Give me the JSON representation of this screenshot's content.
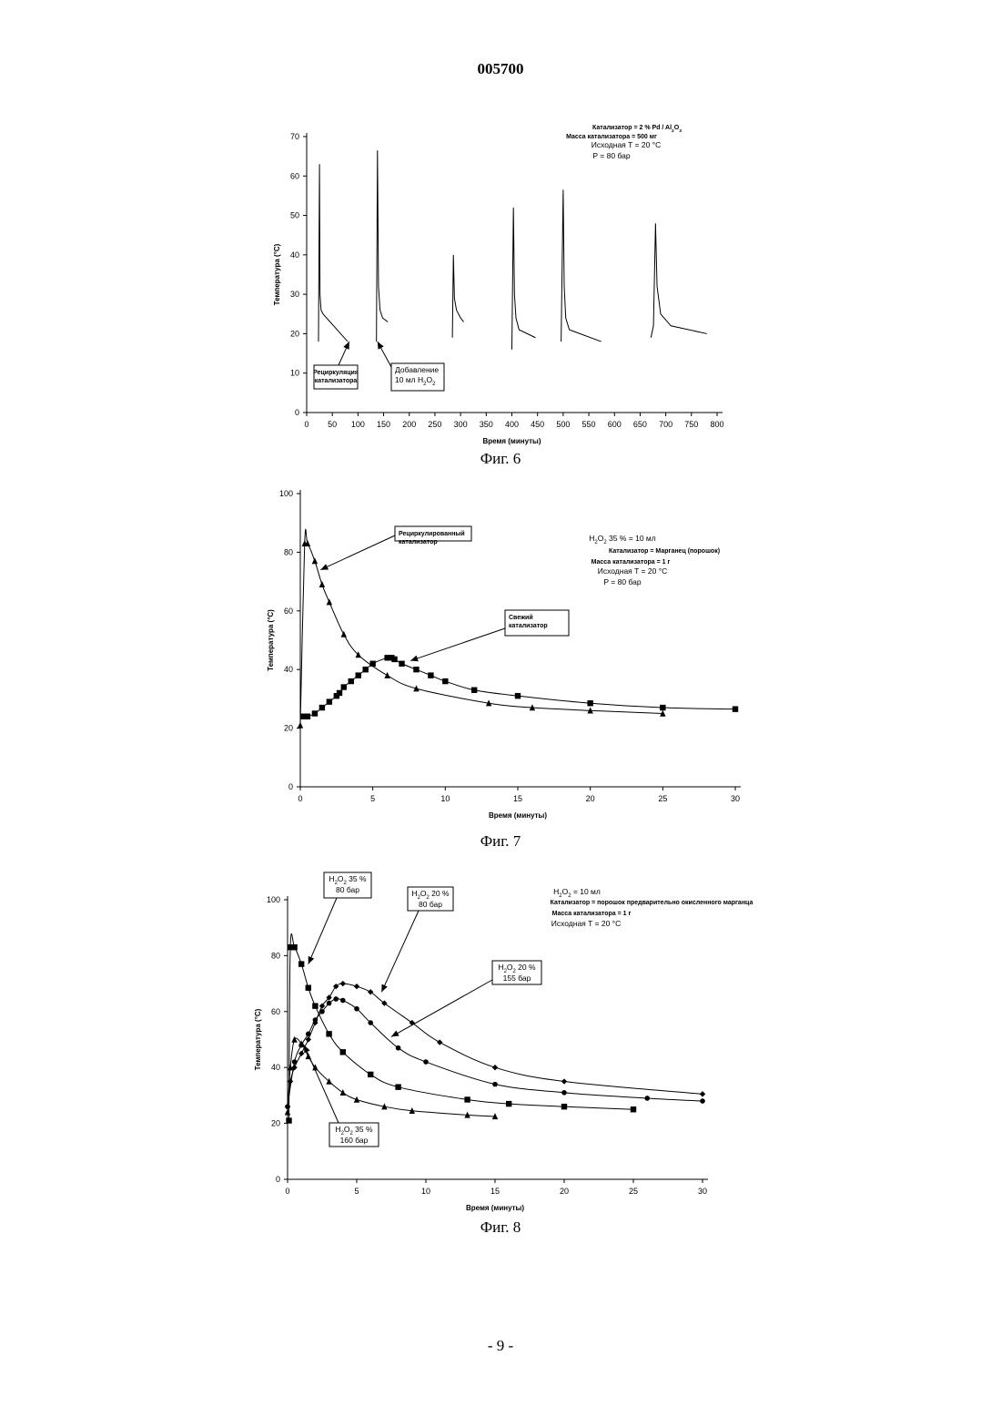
{
  "page": {
    "top_number": "005700",
    "bottom_number": "- 9 -"
  },
  "chart_data": [
    {
      "type": "line",
      "caption": "Фиг. 6",
      "xlabel": "Время (минуты)",
      "ylabel": "Температура (°C)",
      "xlim": [
        0,
        800
      ],
      "ylim": [
        0,
        70
      ],
      "xticks": [
        0,
        50,
        100,
        150,
        200,
        250,
        300,
        350,
        400,
        450,
        500,
        550,
        600,
        650,
        700,
        750,
        800
      ],
      "yticks": [
        0,
        10,
        20,
        30,
        40,
        50,
        60,
        70
      ],
      "info_lines": [
        "Катализатор = 2 % Pd / Al₂O₃",
        "Масса катализатора = 500 мг",
        "Исходная T = 20 °C",
        "P = 80 бар"
      ],
      "series": [
        {
          "x": [
            23,
            25,
            26,
            28,
            32,
            80
          ],
          "y": [
            18,
            63,
            30,
            26,
            25,
            18
          ]
        },
        {
          "x": [
            136,
            138,
            140,
            143,
            148,
            158
          ],
          "y": [
            18,
            66.5,
            32,
            26,
            24,
            23
          ]
        },
        {
          "x": [
            284,
            286,
            288,
            292,
            300,
            306
          ],
          "y": [
            19,
            40,
            29,
            26,
            24,
            23
          ]
        },
        {
          "x": [
            400,
            403,
            405,
            408,
            414,
            446
          ],
          "y": [
            16,
            52,
            30,
            24,
            21,
            19
          ]
        },
        {
          "x": [
            496,
            500,
            502,
            505,
            512,
            574
          ],
          "y": [
            18,
            56.5,
            32,
            24,
            21,
            18
          ]
        },
        {
          "x": [
            671,
            676,
            680,
            683,
            690,
            710,
            780
          ],
          "y": [
            19,
            22,
            48,
            32,
            25,
            22,
            20
          ]
        }
      ],
      "annotations": [
        {
          "lines": [
            "Рециркуляция",
            "катализатора"
          ]
        },
        {
          "lines": [
            "Добавление",
            "10 мл H₂O₂"
          ]
        }
      ]
    },
    {
      "type": "line",
      "caption": "Фиг. 7",
      "xlabel": "Время (минуты)",
      "ylabel": "Температура (°C)",
      "xlim": [
        0,
        30
      ],
      "ylim": [
        0,
        100
      ],
      "xticks": [
        0,
        5,
        10,
        15,
        20,
        25,
        30
      ],
      "yticks": [
        0,
        20,
        40,
        60,
        80,
        100
      ],
      "info_lines": [
        "H₂O₂ 35 % = 10 мл",
        "Катализатор = Марганец (порошок)",
        "Масса катализатора = 1 г",
        "Исходная T = 20 °C",
        "P = 80 бар"
      ],
      "series": [
        {
          "marker": "triangle",
          "x": [
            0,
            0.3,
            0.5,
            1.0,
            1.5,
            2.0,
            3.0,
            4.0,
            6.0,
            8.0,
            13.0,
            16.0,
            20.0,
            25.0
          ],
          "y": [
            21,
            83,
            83,
            77,
            69,
            63,
            52,
            45,
            38,
            33.5,
            28.5,
            27,
            26,
            25
          ]
        },
        {
          "marker": "square",
          "x": [
            0.2,
            0.5,
            1.0,
            1.5,
            2.0,
            2.5,
            2.7,
            3.0,
            3.5,
            4.0,
            4.5,
            5.0,
            6.0,
            6.3,
            6.5,
            7.0,
            8.0,
            9.0,
            10.0,
            12.0,
            15.0,
            20.0,
            25.0,
            30.0
          ],
          "y": [
            24,
            24,
            25,
            27,
            29,
            31,
            32,
            34,
            36,
            38,
            40,
            42,
            44,
            44,
            43.5,
            42,
            40,
            38,
            36,
            33,
            31,
            28.5,
            27,
            26.5
          ]
        }
      ],
      "annotations": [
        {
          "lines": [
            "Рециркулированный",
            "катализатор"
          ]
        },
        {
          "lines": [
            "Свежий",
            "катализатор"
          ]
        }
      ]
    },
    {
      "type": "line",
      "caption": "Фиг. 8",
      "xlabel": "Время (минуты)",
      "ylabel": "Температура (°C)",
      "xlim": [
        0,
        30
      ],
      "ylim": [
        0,
        100
      ],
      "xticks": [
        0,
        5,
        10,
        15,
        20,
        25,
        30
      ],
      "yticks": [
        0,
        20,
        40,
        60,
        80,
        100
      ],
      "info_lines": [
        "H₂O₂ = 10 мл",
        "Катализатор = порошок предварительно окисленного марганца",
        "Масса катализатора = 1 г",
        "Исходная T = 20 °C"
      ],
      "series": [
        {
          "marker": "square",
          "x": [
            0.1,
            0.2,
            0.5,
            1.0,
            1.5,
            2.0,
            3.0,
            4.0,
            6.0,
            8.0,
            13.0,
            16.0,
            20.0,
            25.0
          ],
          "y": [
            21,
            83,
            83,
            77,
            68.5,
            62,
            52,
            45.5,
            37.5,
            33,
            28.5,
            27,
            26,
            25
          ]
        },
        {
          "marker": "triangle",
          "x": [
            0,
            0.2,
            0.5,
            1.0,
            1.5,
            2.0,
            3.0,
            4.0,
            5.0,
            7.0,
            9.0,
            13.0,
            15.0
          ],
          "y": [
            24,
            40,
            50,
            48.5,
            44,
            40,
            35,
            31,
            28.5,
            26,
            24.5,
            23,
            22.5
          ]
        },
        {
          "marker": "diamond",
          "x": [
            0,
            0.2,
            0.5,
            1.0,
            1.5,
            2.0,
            2.5,
            3.0,
            3.5,
            4.0,
            5.0,
            6.0,
            7.0,
            9.0,
            11.0,
            15.0,
            20.0,
            30.0
          ],
          "y": [
            26,
            35,
            40,
            45,
            50,
            56,
            62,
            65,
            69,
            70,
            69,
            67,
            63,
            56,
            49,
            40,
            35,
            30.5
          ]
        },
        {
          "marker": "circle",
          "x": [
            0,
            0.5,
            1.0,
            1.5,
            2.0,
            2.5,
            3.0,
            3.5,
            4.0,
            5.0,
            6.0,
            8.0,
            10.0,
            15.0,
            20.0,
            26.0,
            30.0
          ],
          "y": [
            26,
            42,
            48,
            52,
            57,
            60,
            63,
            64.5,
            64,
            61,
            56,
            47,
            42,
            34,
            31,
            29,
            28
          ]
        }
      ],
      "annotations": [
        {
          "lines": [
            "H₂O₂ 35 %",
            "80 бар"
          ]
        },
        {
          "lines": [
            "H₂O₂ 20 %",
            "80 бар"
          ]
        },
        {
          "lines": [
            "H₂O₂ 20 %",
            "155 бар"
          ]
        },
        {
          "lines": [
            "H₂O₂ 35 %",
            "160 бар"
          ]
        }
      ]
    }
  ]
}
